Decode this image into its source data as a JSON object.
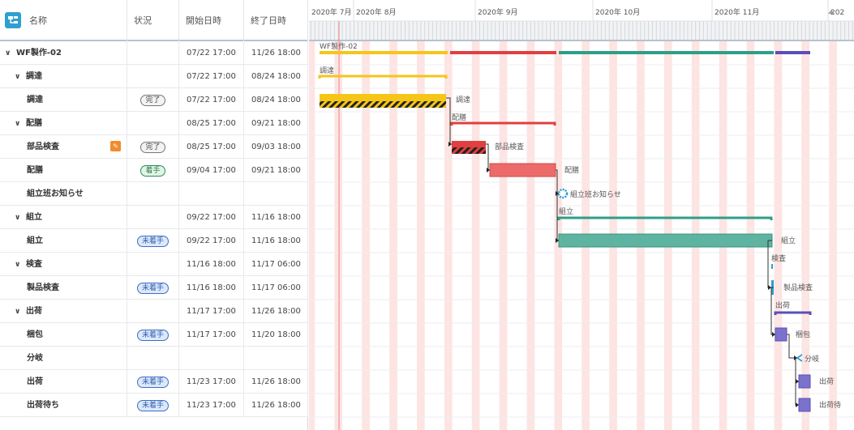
{
  "header": {
    "name": "名称",
    "status": "状況",
    "start": "開始日時",
    "end": "終了日時"
  },
  "rows": [
    {
      "name": "WF製作-02",
      "type": "project",
      "indent": 0,
      "status": "",
      "start": "07/22 17:00",
      "end": "11/26 18:00",
      "chevron": true
    },
    {
      "name": "調達",
      "type": "group",
      "indent": 1,
      "status": "",
      "start": "07/22 17:00",
      "end": "08/24 18:00",
      "chevron": true
    },
    {
      "name": "調達",
      "type": "task",
      "indent": 2,
      "status": "完了",
      "start": "07/22 17:00",
      "end": "08/24 18:00"
    },
    {
      "name": "配膳",
      "type": "group",
      "indent": 1,
      "status": "",
      "start": "08/25 17:00",
      "end": "09/21 18:00",
      "chevron": true
    },
    {
      "name": "部品検査",
      "type": "task",
      "indent": 2,
      "status": "完了",
      "start": "08/25 17:00",
      "end": "09/03 18:00",
      "warn": true
    },
    {
      "name": "配膳",
      "type": "task",
      "indent": 2,
      "status": "着手",
      "start": "09/04 17:00",
      "end": "09/21 18:00"
    },
    {
      "name": "組立班お知らせ",
      "type": "milestone",
      "indent": 2,
      "status": "",
      "start": "",
      "end": ""
    },
    {
      "name": "組立",
      "type": "group",
      "indent": 1,
      "status": "",
      "start": "09/22 17:00",
      "end": "11/16 18:00",
      "chevron": true
    },
    {
      "name": "組立",
      "type": "task",
      "indent": 2,
      "status": "未着手",
      "start": "09/22 17:00",
      "end": "11/16 18:00"
    },
    {
      "name": "検査",
      "type": "group",
      "indent": 1,
      "status": "",
      "start": "11/16 18:00",
      "end": "11/17 06:00",
      "chevron": true
    },
    {
      "name": "製品検査",
      "type": "task",
      "indent": 2,
      "status": "未着手",
      "start": "11/16 18:00",
      "end": "11/17 06:00"
    },
    {
      "name": "出荷",
      "type": "group",
      "indent": 1,
      "status": "",
      "start": "11/17 17:00",
      "end": "11/26 18:00",
      "chevron": true
    },
    {
      "name": "梱包",
      "type": "task",
      "indent": 2,
      "status": "未着手",
      "start": "11/17 17:00",
      "end": "11/20 18:00"
    },
    {
      "name": "分岐",
      "type": "branch",
      "indent": 2,
      "status": "",
      "start": "",
      "end": ""
    },
    {
      "name": "出荷",
      "type": "task",
      "indent": 2,
      "status": "未着手",
      "start": "11/23 17:00",
      "end": "11/26 18:00"
    },
    {
      "name": "出荷待ち",
      "type": "task",
      "indent": 2,
      "status": "未着手",
      "start": "11/23 17:00",
      "end": "11/26 18:00"
    }
  ],
  "timeline": {
    "months": [
      "2020年 7月",
      "2020年 8月",
      "2020年 9月",
      "2020年 10月",
      "2020年 11月",
      "202"
    ],
    "bar_labels": {
      "project": "WF製作-02",
      "chotatsu_group": "調達",
      "chotatsu_task": "調達",
      "haizen_group": "配膳",
      "buhin": "部品検査",
      "haizen_task": "配膳",
      "oshirase": "組立班お知らせ",
      "kumitate_group": "組立",
      "kumitate_task": "組立",
      "kensa_group": "検査",
      "seihin": "製品検査",
      "shukka_group": "出荷",
      "konpo": "梱包",
      "bunki": "分岐",
      "shukka_task": "出荷",
      "machi": "出荷待"
    }
  },
  "colors": {
    "procure": "#f5c518",
    "prep": "#e04040",
    "assemble": "#2e9e86",
    "ship": "#5a4fb8",
    "today_line": "#f08080",
    "weekend": "#fde4e2"
  },
  "icons": {
    "app": "tree-structure-icon",
    "warn": "edit-warning-icon",
    "milestone": "gear-milestone-icon",
    "branch": "branch-icon"
  }
}
